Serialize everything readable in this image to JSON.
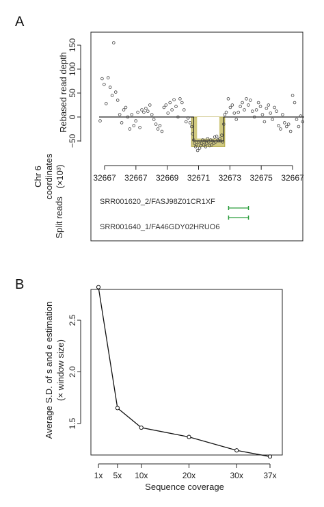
{
  "chart_data": [
    {
      "panel_label": "A",
      "type": "scatter",
      "ylabel": "Rebased read depth",
      "ylim": [
        -100,
        170
      ],
      "yticks": [
        150,
        100,
        50,
        0,
        -50
      ],
      "ytick_labels": [
        "150",
        "100",
        "50",
        "0",
        "−50"
      ],
      "colors": {
        "points": "#444444",
        "segment_fill": "#c8bf6a",
        "segment_edge": "#b0a642",
        "read_line": "#2a9d3c",
        "baseline": "#222222"
      },
      "series": [
        {
          "values": [
            {
              "x": 0.02,
              "y": -8
            },
            {
              "x": 0.06,
              "y": 80
            },
            {
              "x": 0.1,
              "y": 68
            },
            {
              "x": 0.14,
              "y": 28
            },
            {
              "x": 0.18,
              "y": 82
            },
            {
              "x": 0.22,
              "y": 62
            },
            {
              "x": 0.26,
              "y": 45
            },
            {
              "x": 0.29,
              "y": 155
            },
            {
              "x": 0.33,
              "y": 52
            },
            {
              "x": 0.37,
              "y": 35
            },
            {
              "x": 0.41,
              "y": 5
            },
            {
              "x": 0.45,
              "y": -12
            },
            {
              "x": 0.49,
              "y": 15
            },
            {
              "x": 0.53,
              "y": 20
            },
            {
              "x": 0.57,
              "y": 0
            },
            {
              "x": 0.61,
              "y": -25
            },
            {
              "x": 0.65,
              "y": 5
            },
            {
              "x": 0.69,
              "y": -18
            },
            {
              "x": 0.73,
              "y": -8
            },
            {
              "x": 0.77,
              "y": 10
            },
            {
              "x": 0.81,
              "y": -22
            },
            {
              "x": 0.85,
              "y": 15
            },
            {
              "x": 0.89,
              "y": 10
            },
            {
              "x": 0.93,
              "y": 18
            },
            {
              "x": 0.97,
              "y": 12
            },
            {
              "x": 1.01,
              "y": 25
            },
            {
              "x": 1.05,
              "y": 5
            },
            {
              "x": 1.09,
              "y": -5
            },
            {
              "x": 1.13,
              "y": -15
            },
            {
              "x": 1.17,
              "y": -25
            },
            {
              "x": 1.21,
              "y": -18
            },
            {
              "x": 1.25,
              "y": -30
            },
            {
              "x": 1.29,
              "y": 20
            },
            {
              "x": 1.33,
              "y": 25
            },
            {
              "x": 1.37,
              "y": 8
            },
            {
              "x": 1.41,
              "y": 30
            },
            {
              "x": 1.45,
              "y": 15
            },
            {
              "x": 1.49,
              "y": 36
            },
            {
              "x": 1.53,
              "y": 22
            },
            {
              "x": 1.57,
              "y": 0
            },
            {
              "x": 1.61,
              "y": 38
            },
            {
              "x": 1.65,
              "y": 30
            },
            {
              "x": 1.69,
              "y": 15
            },
            {
              "x": 1.73,
              "y": -10
            },
            {
              "x": 1.77,
              "y": -2
            },
            {
              "x": 1.81,
              "y": -12
            },
            {
              "x": 1.84,
              "y": -20
            },
            {
              "x": 1.86,
              "y": -35
            },
            {
              "x": 1.88,
              "y": -48
            },
            {
              "x": 1.9,
              "y": -55
            },
            {
              "x": 1.92,
              "y": -62
            },
            {
              "x": 1.94,
              "y": -58
            },
            {
              "x": 1.96,
              "y": -70
            },
            {
              "x": 1.98,
              "y": -52
            },
            {
              "x": 2.0,
              "y": -65
            },
            {
              "x": 2.02,
              "y": -60
            },
            {
              "x": 2.04,
              "y": -55
            },
            {
              "x": 2.06,
              "y": -48
            },
            {
              "x": 2.08,
              "y": -58
            },
            {
              "x": 2.1,
              "y": -50
            },
            {
              "x": 2.12,
              "y": -62
            },
            {
              "x": 2.14,
              "y": -55
            },
            {
              "x": 2.16,
              "y": -45
            },
            {
              "x": 2.18,
              "y": -52
            },
            {
              "x": 2.2,
              "y": -60
            },
            {
              "x": 2.22,
              "y": -48
            },
            {
              "x": 2.24,
              "y": -58
            },
            {
              "x": 2.26,
              "y": -50
            },
            {
              "x": 2.28,
              "y": -55
            },
            {
              "x": 2.3,
              "y": -42
            },
            {
              "x": 2.32,
              "y": -52
            },
            {
              "x": 2.34,
              "y": -40
            },
            {
              "x": 2.36,
              "y": -48
            },
            {
              "x": 2.38,
              "y": -50
            },
            {
              "x": 2.4,
              "y": -45
            },
            {
              "x": 2.42,
              "y": -50
            },
            {
              "x": 2.44,
              "y": -38
            },
            {
              "x": 2.46,
              "y": -52
            },
            {
              "x": 2.48,
              "y": -15
            },
            {
              "x": 2.5,
              "y": 5
            },
            {
              "x": 2.53,
              "y": 10
            },
            {
              "x": 2.57,
              "y": 38
            },
            {
              "x": 2.61,
              "y": 20
            },
            {
              "x": 2.65,
              "y": 25
            },
            {
              "x": 2.69,
              "y": 8
            },
            {
              "x": 2.73,
              "y": -5
            },
            {
              "x": 2.77,
              "y": 10
            },
            {
              "x": 2.81,
              "y": 22
            },
            {
              "x": 2.85,
              "y": 30
            },
            {
              "x": 2.89,
              "y": 15
            },
            {
              "x": 2.93,
              "y": 38
            },
            {
              "x": 2.97,
              "y": 25
            },
            {
              "x": 3.01,
              "y": 35
            },
            {
              "x": 3.05,
              "y": 12
            },
            {
              "x": 3.09,
              "y": 0
            },
            {
              "x": 3.13,
              "y": 15
            },
            {
              "x": 3.17,
              "y": 30
            },
            {
              "x": 3.21,
              "y": 22
            },
            {
              "x": 3.25,
              "y": 5
            },
            {
              "x": 3.29,
              "y": -10
            },
            {
              "x": 3.33,
              "y": 18
            },
            {
              "x": 3.37,
              "y": 25
            },
            {
              "x": 3.41,
              "y": 8
            },
            {
              "x": 3.45,
              "y": -5
            },
            {
              "x": 3.49,
              "y": 20
            },
            {
              "x": 3.53,
              "y": 12
            },
            {
              "x": 3.57,
              "y": -18
            },
            {
              "x": 3.61,
              "y": -25
            },
            {
              "x": 3.65,
              "y": 5
            },
            {
              "x": 3.69,
              "y": -12
            },
            {
              "x": 3.73,
              "y": -20
            },
            {
              "x": 3.77,
              "y": -15
            },
            {
              "x": 3.81,
              "y": -30
            },
            {
              "x": 3.85,
              "y": 45
            },
            {
              "x": 3.89,
              "y": 30
            },
            {
              "x": 3.93,
              "y": -5
            },
            {
              "x": 3.97,
              "y": -20
            },
            {
              "x": 4.01,
              "y": 2
            },
            {
              "x": 4.05,
              "y": -10
            }
          ]
        }
      ],
      "segments": [
        {
          "x_start": 0.0,
          "x_end": 1.84,
          "y": 0
        },
        {
          "x_start": 1.84,
          "x_end": 1.88,
          "y": 0
        },
        {
          "x_start": 1.88,
          "x_end": 2.48,
          "y": -50
        },
        {
          "x_start": 2.48,
          "x_end": 4.08,
          "y": 0
        }
      ],
      "deletion_region": {
        "x_start": 1.84,
        "x_end": 2.5,
        "y_low": -62,
        "y_high": 0
      },
      "coordinates": {
        "label_lines": [
          "Chr 6",
          "coordinates",
          "(×10³)"
        ],
        "tick_labels": [
          "32667",
          "32667",
          "32669",
          "32671",
          "32673",
          "32675",
          "32667"
        ]
      },
      "split_reads": {
        "label": "Split reads",
        "reads": [
          {
            "name": "SRR001620_2/FASJ98Z01CR1XF",
            "x_start": 1.76,
            "x_end": 2.7
          },
          {
            "name": "SRR001640_1/FA46GDY02HRUO6",
            "x_start": 1.76,
            "x_end": 2.7
          }
        ]
      }
    },
    {
      "panel_label": "B",
      "type": "line",
      "xlabel": "Sequence coverage",
      "ylabel_lines": [
        "Average S.D. of s and e estimation",
        "(× window size)"
      ],
      "categories": [
        "1x",
        "5x",
        "10x",
        "20x",
        "30x",
        "37x"
      ],
      "x": [
        1,
        5,
        10,
        20,
        30,
        37
      ],
      "values": [
        2.82,
        1.65,
        1.46,
        1.37,
        1.24,
        1.18
      ],
      "xlim": [
        0,
        38
      ],
      "ylim": [
        1.15,
        2.85
      ],
      "yticks": [
        1.5,
        2.0,
        2.5
      ],
      "ytick_labels": [
        "1.5",
        "2.0",
        "2.5"
      ],
      "colors": {
        "line": "#111111"
      }
    }
  ]
}
